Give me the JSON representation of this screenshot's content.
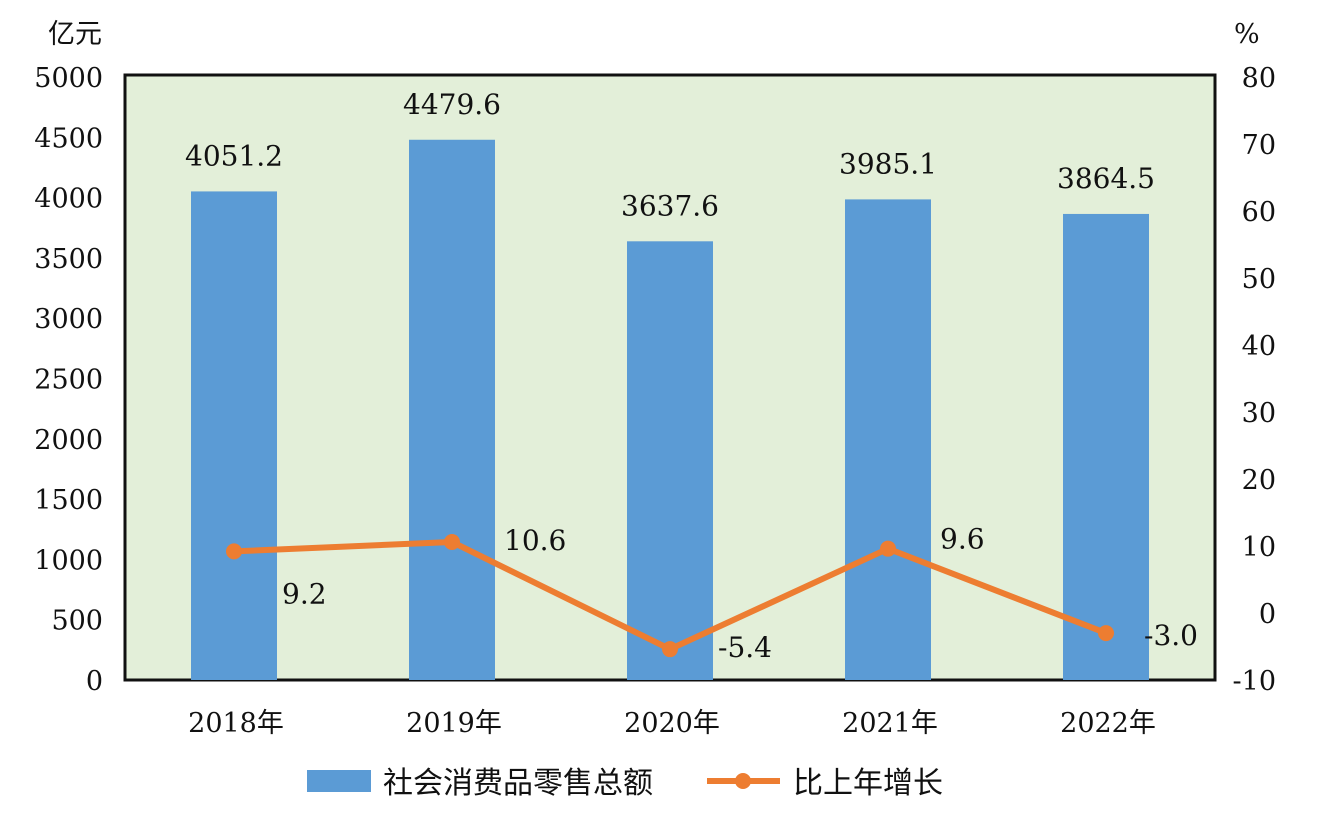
{
  "chart_data": {
    "type": "bar+line",
    "categories": [
      "2018年",
      "2019年",
      "2020年",
      "2021年",
      "2022年"
    ],
    "series": [
      {
        "name": "社会消费品零售总额",
        "type": "bar",
        "axis": "left",
        "values": [
          4051.2,
          4479.6,
          3637.6,
          3985.1,
          3864.5
        ],
        "labels": [
          "4051.2",
          "4479.6",
          "3637.6",
          "3985.1",
          "3864.5"
        ],
        "color": "#5b9bd5"
      },
      {
        "name": "比上年增长",
        "type": "line",
        "axis": "right",
        "values": [
          9.2,
          10.6,
          -5.4,
          9.6,
          -3.0
        ],
        "labels": [
          "9.2",
          "10.6",
          "-5.4",
          "9.6",
          "-3.0"
        ],
        "color": "#ed7d31"
      }
    ],
    "ylabel_left": "亿元",
    "ylabel_right": "%",
    "ylim_left": [
      0,
      5000
    ],
    "yticks_left": [
      "0",
      "500",
      "1000",
      "1500",
      "2000",
      "2500",
      "3000",
      "3500",
      "4000",
      "4500",
      "5000"
    ],
    "ylim_right": [
      -10,
      80
    ],
    "yticks_right": [
      "-10",
      "0",
      "10",
      "20",
      "30",
      "40",
      "50",
      "60",
      "70",
      "80"
    ],
    "grid": false,
    "legend": "bottom",
    "plot_background": "#e3efd9"
  }
}
